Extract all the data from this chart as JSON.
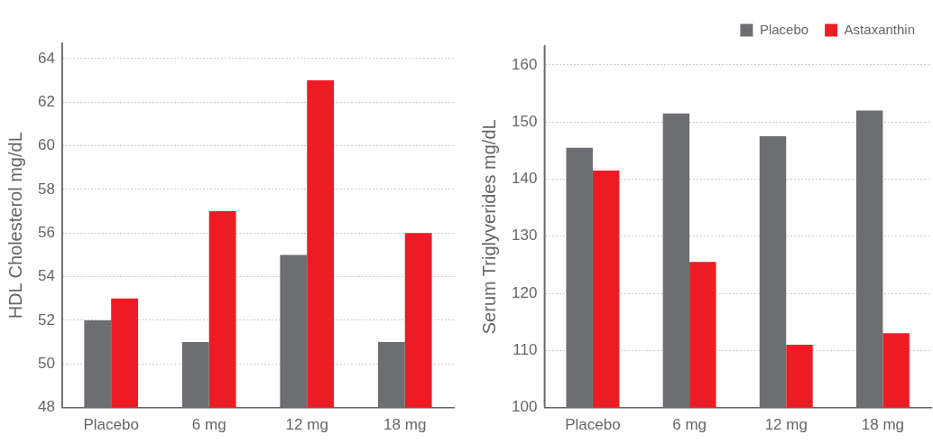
{
  "chart_data": [
    {
      "type": "bar",
      "ylabel": "HDL Cholesterol mg/dL",
      "categories": [
        "Placebo",
        "6 mg",
        "12 mg",
        "18 mg"
      ],
      "series": [
        {
          "color": "#6d6e71",
          "values": [
            52,
            51,
            55,
            51
          ]
        },
        {
          "color": "#ed1c24",
          "values": [
            53,
            57,
            63,
            56
          ]
        }
      ],
      "ylim": [
        48,
        64.7
      ],
      "yticks": [
        48,
        50,
        52,
        54,
        56,
        58,
        60,
        62,
        64
      ],
      "grid": "y",
      "legend": false
    },
    {
      "type": "bar",
      "ylabel": "Serum Triglyverides mg/dL",
      "categories": [
        "Placebo",
        "6 mg",
        "12 mg",
        "18 mg"
      ],
      "series": [
        {
          "name": "Placebo",
          "color": "#6d6e71",
          "values": [
            145.5,
            151.5,
            147.5,
            152
          ]
        },
        {
          "name": "Astaxanthin",
          "color": "#ed1c24",
          "values": [
            141.5,
            125.5,
            111,
            113
          ]
        }
      ],
      "ylim": [
        100,
        163.3
      ],
      "yticks": [
        100,
        110,
        120,
        130,
        140,
        150,
        160
      ],
      "grid": "y",
      "legend": "top right"
    }
  ]
}
